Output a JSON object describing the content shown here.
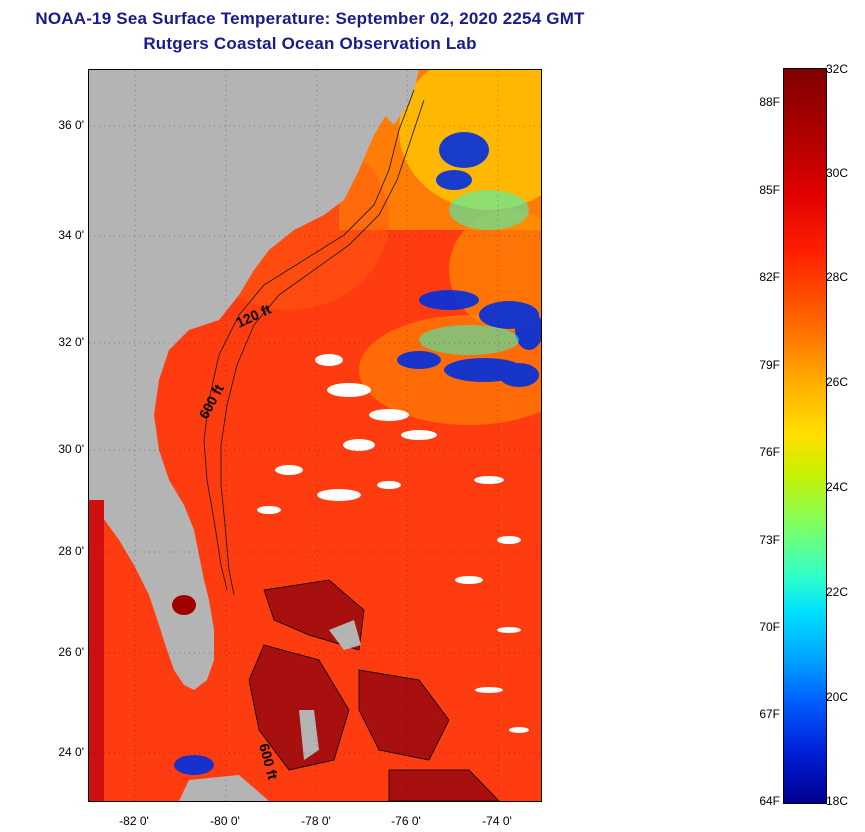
{
  "title": {
    "line1": "NOAA-19 Sea Surface Temperature:  September 02, 2020 2254 GMT",
    "line2": "Rutgers Coastal Ocean Observation Lab"
  },
  "map": {
    "lat_ticks": [
      "36 0'",
      "34 0'",
      "32 0'",
      "30 0'",
      "28 0'",
      "26 0'",
      "24 0'"
    ],
    "lon_ticks": [
      "-82 0'",
      "-80 0'",
      "-78 0'",
      "-76 0'",
      "-74 0'"
    ],
    "contour_labels": [
      "120 ft",
      "600 ft",
      "600 ft"
    ],
    "land_color": "#b4b4b4",
    "cloud_color": "#ffffff"
  },
  "colorbar": {
    "celsius_ticks": [
      "32C",
      "30C",
      "28C",
      "26C",
      "24C",
      "22C",
      "20C",
      "18C"
    ],
    "fahrenheit_ticks": [
      "88F",
      "85F",
      "82F",
      "79F",
      "76F",
      "73F",
      "70F",
      "67F",
      "64F"
    ],
    "range_c": [
      18,
      32
    ],
    "range_f": [
      64,
      89.6
    ],
    "colors": [
      "#000090",
      "#0060ff",
      "#00e0ff",
      "#80ff60",
      "#ffe000",
      "#ff6a00",
      "#e00000",
      "#800000"
    ]
  }
}
